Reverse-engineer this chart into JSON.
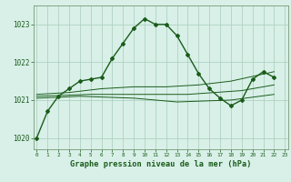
{
  "title": "Graphe pression niveau de la mer (hPa)",
  "background_color": "#d8f0e8",
  "grid_color": "#aaccbb",
  "line_color": "#1a5c1a",
  "ylim": [
    1019.7,
    1023.5
  ],
  "xlim": [
    -0.3,
    23.3
  ],
  "yticks": [
    1020,
    1021,
    1022,
    1023
  ],
  "xticks": [
    0,
    1,
    2,
    3,
    4,
    5,
    6,
    7,
    8,
    9,
    10,
    11,
    12,
    13,
    14,
    15,
    16,
    17,
    18,
    19,
    20,
    21,
    22,
    23
  ],
  "main_line": [
    [
      0,
      1020.0
    ],
    [
      1,
      1020.7
    ],
    [
      2,
      1021.1
    ],
    [
      3,
      1021.3
    ],
    [
      4,
      1021.5
    ],
    [
      5,
      1021.55
    ],
    [
      6,
      1021.6
    ],
    [
      7,
      1022.1
    ],
    [
      8,
      1022.5
    ],
    [
      9,
      1022.9
    ],
    [
      10,
      1023.15
    ],
    [
      11,
      1023.0
    ],
    [
      12,
      1023.0
    ],
    [
      13,
      1022.7
    ],
    [
      14,
      1022.2
    ],
    [
      15,
      1021.7
    ],
    [
      16,
      1021.3
    ],
    [
      17,
      1021.05
    ],
    [
      18,
      1020.85
    ],
    [
      19,
      1021.0
    ],
    [
      20,
      1021.55
    ],
    [
      21,
      1021.75
    ],
    [
      22,
      1021.6
    ]
  ],
  "ref_line1": [
    [
      0,
      1021.15
    ],
    [
      3,
      1021.2
    ],
    [
      6,
      1021.3
    ],
    [
      9,
      1021.35
    ],
    [
      12,
      1021.35
    ],
    [
      15,
      1021.4
    ],
    [
      18,
      1021.5
    ],
    [
      22,
      1021.75
    ]
  ],
  "ref_line2": [
    [
      0,
      1021.05
    ],
    [
      4,
      1021.1
    ],
    [
      9,
      1021.05
    ],
    [
      13,
      1020.95
    ],
    [
      18,
      1021.0
    ],
    [
      22,
      1021.15
    ]
  ],
  "ref_line3": [
    [
      0,
      1021.1
    ],
    [
      5,
      1021.15
    ],
    [
      14,
      1021.15
    ],
    [
      19,
      1021.25
    ],
    [
      22,
      1021.4
    ]
  ]
}
